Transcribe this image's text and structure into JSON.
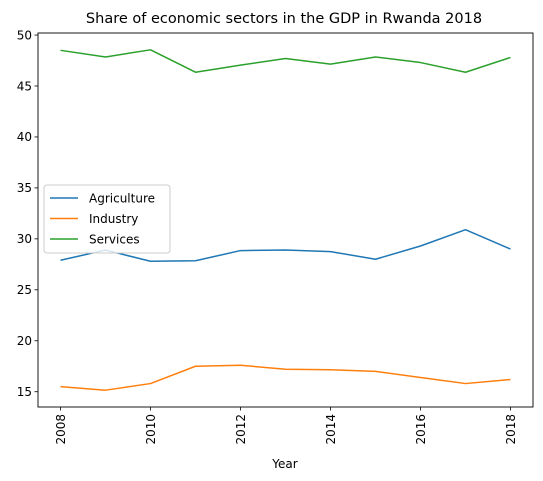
{
  "chart_data": {
    "type": "line",
    "title": "Share of economic sectors in the GDP in Rwanda 2018",
    "xlabel": "Year",
    "ylabel": "",
    "x": [
      2008,
      2009,
      2010,
      2011,
      2012,
      2013,
      2014,
      2015,
      2016,
      2017,
      2018
    ],
    "x_ticks": [
      2008,
      2010,
      2012,
      2014,
      2016,
      2018
    ],
    "y_ticks": [
      15,
      20,
      25,
      30,
      35,
      40,
      45,
      50
    ],
    "xlim": [
      2007.5,
      2018.5
    ],
    "ylim": [
      13.5,
      50.2
    ],
    "grid": false,
    "legend_position": "center-left",
    "series": [
      {
        "name": "Agriculture",
        "color": "#1f77b4",
        "values": [
          27.9,
          28.9,
          27.8,
          27.85,
          28.85,
          28.9,
          28.75,
          28.0,
          29.3,
          30.9,
          29.0
        ]
      },
      {
        "name": "Industry",
        "color": "#ff7f0e",
        "values": [
          15.5,
          15.15,
          15.8,
          17.5,
          17.6,
          17.2,
          17.15,
          17.0,
          16.4,
          15.8,
          16.2
        ]
      },
      {
        "name": "Services",
        "color": "#2ca02c",
        "values": [
          48.5,
          47.85,
          48.55,
          46.35,
          47.05,
          47.7,
          47.15,
          47.85,
          47.3,
          46.35,
          47.8
        ]
      }
    ]
  }
}
